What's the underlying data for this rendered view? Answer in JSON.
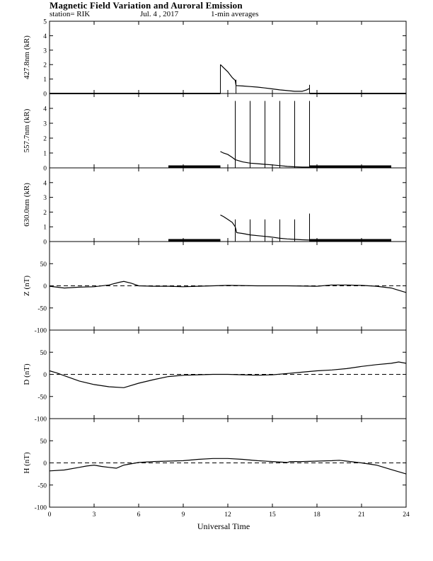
{
  "header": {
    "title": "Magnetic Field Variation and Auroral Emission",
    "station": "station= RIK",
    "date": "Jul.  4  , 2017",
    "averaging": "1-min averages"
  },
  "colors": {
    "line": "#000000",
    "background": "#ffffff"
  },
  "chart_data": [
    {
      "type": "line",
      "ylabel": "427.8nm (kR)",
      "ylim": [
        0,
        5
      ],
      "yticks": [
        0,
        1,
        2,
        3,
        4,
        5
      ],
      "ytick_labels": [
        "0",
        "1",
        "2",
        "3",
        "4",
        "5"
      ],
      "x": [
        11.5,
        11.7,
        12.0,
        12.3,
        12.5,
        12.55,
        13.0,
        13.5,
        14.0,
        14.5,
        15.0,
        15.5,
        16.0,
        16.5,
        17.0,
        17.3,
        17.5
      ],
      "y": [
        2.0,
        1.8,
        1.5,
        1.1,
        0.9,
        0.55,
        0.52,
        0.48,
        0.44,
        0.38,
        0.32,
        0.25,
        0.2,
        0.15,
        0.15,
        0.25,
        0.35
      ],
      "baseline_segments": [
        [
          0,
          11.5
        ],
        [
          17.5,
          24
        ]
      ],
      "spikes": [
        {
          "x": 11.5,
          "y": 2.0
        },
        {
          "x": 12.55,
          "y": 0.95
        },
        {
          "x": 17.5,
          "y": 0.6
        }
      ]
    },
    {
      "type": "line",
      "ylabel": "557.7nm (kR)",
      "ylim": [
        0,
        5
      ],
      "yticks": [
        0,
        1,
        2,
        3,
        4
      ],
      "ytick_labels": [
        "0",
        "1",
        "2",
        "3",
        "4"
      ],
      "x": [
        11.5,
        11.7,
        12.0,
        12.3,
        12.5,
        13.0,
        13.5,
        14.0,
        14.5,
        15.0,
        15.5,
        16.0,
        16.5,
        17.0,
        17.5
      ],
      "y": [
        1.1,
        1.0,
        0.9,
        0.7,
        0.55,
        0.4,
        0.32,
        0.28,
        0.24,
        0.2,
        0.15,
        0.1,
        0.07,
        0.05,
        0.05
      ],
      "thick_segments": [
        [
          8,
          11.5
        ],
        [
          17.5,
          23
        ]
      ],
      "spikes": [
        {
          "x": 12.5,
          "y": 4.5
        },
        {
          "x": 13.5,
          "y": 4.5
        },
        {
          "x": 14.5,
          "y": 4.5
        },
        {
          "x": 15.5,
          "y": 4.5
        },
        {
          "x": 16.5,
          "y": 4.5
        },
        {
          "x": 17.5,
          "y": 4.5
        }
      ]
    },
    {
      "type": "line",
      "ylabel": "630.0nm (kR)",
      "ylim": [
        0,
        5
      ],
      "yticks": [
        0,
        1,
        2,
        3,
        4
      ],
      "ytick_labels": [
        "0",
        "1",
        "2",
        "3",
        "4"
      ],
      "x": [
        11.5,
        11.7,
        12.0,
        12.3,
        12.5,
        12.6,
        13.0,
        13.5,
        14.0,
        14.5,
        15.0,
        15.5,
        16.0,
        16.5,
        17.0,
        17.5
      ],
      "y": [
        1.8,
        1.7,
        1.5,
        1.3,
        1.0,
        0.6,
        0.55,
        0.45,
        0.4,
        0.35,
        0.3,
        0.22,
        0.18,
        0.15,
        0.12,
        0.1
      ],
      "thick_segments": [
        [
          8,
          11.5
        ],
        [
          17.5,
          23
        ]
      ],
      "spikes": [
        {
          "x": 12.5,
          "y": 1.5
        },
        {
          "x": 13.5,
          "y": 1.5
        },
        {
          "x": 14.5,
          "y": 1.5
        },
        {
          "x": 15.5,
          "y": 1.5
        },
        {
          "x": 16.5,
          "y": 1.5
        },
        {
          "x": 17.5,
          "y": 1.9
        }
      ]
    },
    {
      "type": "line",
      "ylabel": "Z (nT)",
      "ylim": [
        -100,
        100
      ],
      "yticks": [
        -100,
        -50,
        0,
        50
      ],
      "ytick_labels": [
        "-100",
        "-50",
        "0",
        "50"
      ],
      "zero_line": "dashed",
      "x": [
        0,
        1,
        2,
        3,
        4,
        4.7,
        5.0,
        5.5,
        6.0,
        7,
        8,
        9,
        10,
        11,
        12,
        14,
        16,
        18,
        19,
        20,
        21,
        22,
        23,
        23.5,
        24
      ],
      "y": [
        -1,
        -5,
        -3,
        -2,
        2,
        8,
        10,
        6,
        0,
        -1,
        -1,
        -2,
        -1,
        0,
        1,
        0,
        0,
        -1,
        2,
        2,
        1,
        -1,
        -5,
        -10,
        -15
      ]
    },
    {
      "type": "line",
      "ylabel": "D (nT)",
      "ylim": [
        -100,
        100
      ],
      "yticks": [
        -100,
        -50,
        0,
        50
      ],
      "ytick_labels": [
        "-100",
        "-50",
        "0",
        "50"
      ],
      "zero_line": "dashed",
      "x": [
        0,
        0.5,
        1,
        2,
        3,
        4,
        5,
        6,
        7,
        8,
        9,
        10,
        11,
        12,
        13,
        14,
        15,
        16,
        17,
        18,
        19,
        20,
        21,
        22,
        23,
        23.5,
        24
      ],
      "y": [
        8,
        3,
        -3,
        -15,
        -23,
        -28,
        -30,
        -20,
        -12,
        -5,
        -2,
        -1,
        0,
        0,
        -1,
        -2,
        -1,
        2,
        5,
        8,
        10,
        13,
        18,
        22,
        25,
        28,
        25
      ]
    },
    {
      "type": "line",
      "ylabel": "H (nT)",
      "ylim": [
        -100,
        100
      ],
      "yticks": [
        -100,
        -50,
        0,
        50
      ],
      "ytick_labels": [
        "-100",
        "-50",
        "0",
        "50"
      ],
      "zero_line": "dashed",
      "x": [
        0,
        1,
        2,
        2.5,
        3,
        3.5,
        4,
        4.5,
        5,
        6,
        7,
        8,
        9,
        10,
        11,
        12,
        13,
        14,
        15,
        16,
        16.2,
        17,
        18,
        19,
        19.5,
        20,
        21,
        22,
        23,
        24
      ],
      "y": [
        -18,
        -16,
        -10,
        -7,
        -5,
        -8,
        -10,
        -12,
        -5,
        1,
        3,
        4,
        5,
        8,
        10,
        10,
        8,
        5,
        3,
        1,
        3,
        3,
        4,
        5,
        6,
        4,
        0,
        -5,
        -15,
        -25
      ]
    }
  ],
  "x_axis": {
    "label": "Universal Time",
    "ticks": [
      0,
      3,
      6,
      9,
      12,
      15,
      18,
      21,
      24
    ],
    "tick_labels": [
      "0",
      "3",
      "6",
      "9",
      "12",
      "15",
      "18",
      "21",
      "24"
    ],
    "range": [
      0,
      24
    ]
  }
}
